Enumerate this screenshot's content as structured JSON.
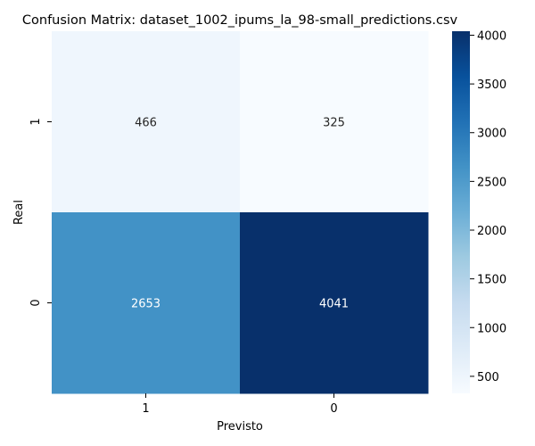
{
  "chart_data": {
    "type": "heatmap",
    "title": "Confusion Matrix: dataset_1002_ipums_la_98-small_predictions.csv",
    "xlabel": "Previsto",
    "ylabel": "Real",
    "x_categories": [
      "1",
      "0"
    ],
    "y_categories": [
      "1",
      "0"
    ],
    "values": [
      [
        466,
        325
      ],
      [
        2653,
        4041
      ]
    ],
    "colormap": "Blues",
    "colormap_stops": [
      "#f7fbff",
      "#deebf7",
      "#c6dbef",
      "#9ecae1",
      "#6baed6",
      "#4292c6",
      "#2171b5",
      "#08519c",
      "#08306b"
    ],
    "color_range": [
      325,
      4041
    ],
    "colorbar_ticks": [
      500,
      1000,
      1500,
      2000,
      2500,
      3000,
      3500,
      4000
    ],
    "colorbar_tick_labels": [
      "500",
      "1000",
      "1500",
      "2000",
      "2500",
      "3000",
      "3500",
      "4000"
    ],
    "annotation_dark_text_color": "#262626",
    "annotation_light_text_color": "#ffffff",
    "legend_placement": "right",
    "grid": false
  }
}
